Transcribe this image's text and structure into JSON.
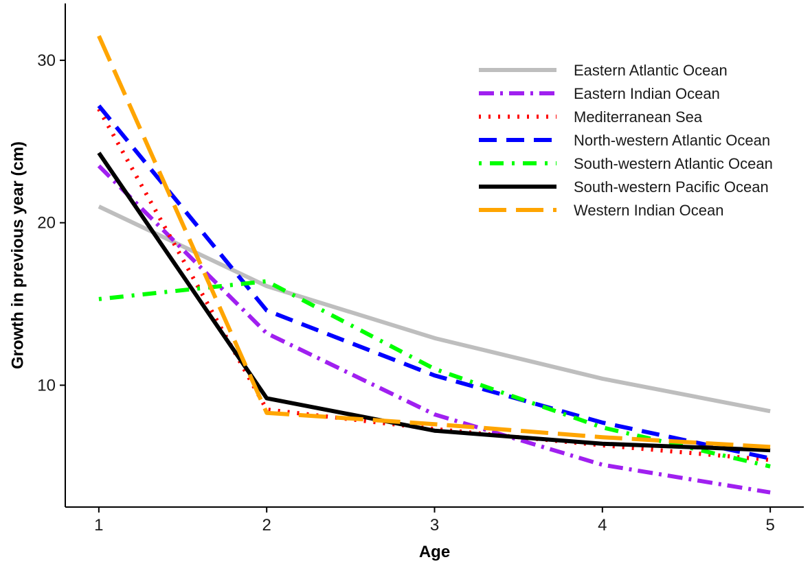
{
  "chart_data": {
    "type": "line",
    "title": "",
    "xlabel": "Age",
    "ylabel": "Growth in previous year (cm)",
    "x": [
      1,
      2,
      3,
      4,
      5
    ],
    "x_ticks": [
      "1",
      "2",
      "3",
      "4",
      "5"
    ],
    "y_ticks": [
      10,
      20,
      30
    ],
    "xlim": [
      0.8,
      5.2
    ],
    "ylim": [
      2.5,
      33.5
    ],
    "grid": false,
    "legend_position": "top-right",
    "series": [
      {
        "name": "Eastern Atlantic Ocean",
        "values": [
          21.0,
          16.1,
          12.9,
          10.4,
          8.4
        ],
        "color": "#bebebe",
        "dash": "solid"
      },
      {
        "name": "Eastern Indian Ocean",
        "values": [
          23.5,
          13.2,
          8.2,
          5.1,
          3.4
        ],
        "color": "#a020f0",
        "dash": "dashdot"
      },
      {
        "name": "Mediterranean Sea",
        "values": [
          27.0,
          8.5,
          7.3,
          6.3,
          5.4
        ],
        "color": "#ff0000",
        "dash": "dotted"
      },
      {
        "name": "North-western Atlantic Ocean",
        "values": [
          27.2,
          14.6,
          10.6,
          7.7,
          5.5
        ],
        "color": "#0000ff",
        "dash": "dashed"
      },
      {
        "name": "South-western Atlantic Ocean",
        "values": [
          15.3,
          16.4,
          11.0,
          7.4,
          5.0
        ],
        "color": "#00ff00",
        "dash": "dotdash"
      },
      {
        "name": "South-western Pacific Ocean",
        "values": [
          24.3,
          9.2,
          7.2,
          6.4,
          6.0
        ],
        "color": "#000000",
        "dash": "solid"
      },
      {
        "name": "Western Indian Ocean",
        "values": [
          31.5,
          8.3,
          7.6,
          6.8,
          6.2
        ],
        "color": "#ffa500",
        "dash": "longdash"
      }
    ]
  }
}
